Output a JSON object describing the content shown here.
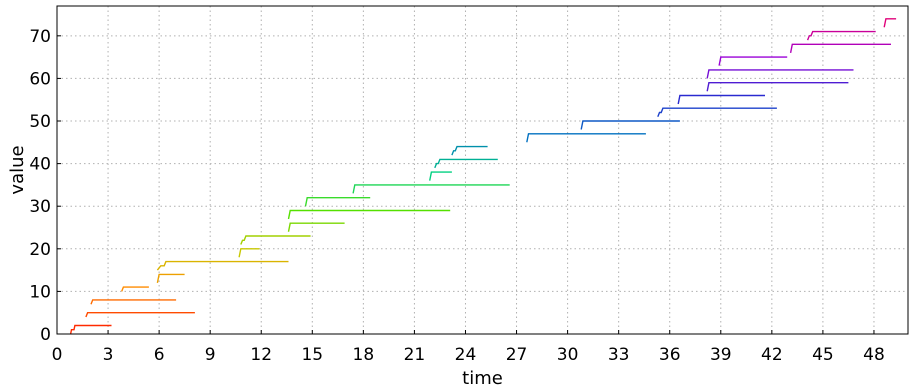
{
  "chart_data": {
    "type": "line",
    "title": "",
    "xlabel": "time",
    "ylabel": "value",
    "xlim": [
      0,
      50
    ],
    "ylim": [
      0,
      77
    ],
    "xticks": [
      0,
      3,
      6,
      9,
      12,
      15,
      18,
      21,
      24,
      27,
      30,
      33,
      36,
      39,
      42,
      45,
      48
    ],
    "yticks": [
      0,
      10,
      20,
      30,
      40,
      50,
      60,
      70
    ],
    "grid": true,
    "legend": "none",
    "color_gradient": [
      "#ff2a00",
      "#ff8c00",
      "#c8c800",
      "#55e000",
      "#00d080",
      "#0070c0",
      "#2a2ad0",
      "#9a00d8",
      "#e0007a"
    ],
    "series": [
      {
        "points": [
          [
            0.8,
            0
          ],
          [
            0.85,
            1
          ],
          [
            1.0,
            1
          ],
          [
            1.05,
            2
          ],
          [
            3.2,
            2
          ]
        ]
      },
      {
        "points": [
          [
            1.7,
            4
          ],
          [
            1.8,
            5
          ],
          [
            8.1,
            5
          ]
        ]
      },
      {
        "points": [
          [
            2.0,
            7
          ],
          [
            2.1,
            8
          ],
          [
            7.0,
            8
          ]
        ]
      },
      {
        "points": [
          [
            3.8,
            10
          ],
          [
            3.9,
            11
          ],
          [
            5.4,
            11
          ]
        ]
      },
      {
        "points": [
          [
            5.9,
            12
          ],
          [
            6.0,
            14
          ],
          [
            7.5,
            14
          ]
        ]
      },
      {
        "points": [
          [
            5.9,
            15
          ],
          [
            6.1,
            16
          ],
          [
            6.3,
            16
          ],
          [
            6.4,
            17
          ],
          [
            13.6,
            17
          ]
        ]
      },
      {
        "points": [
          [
            10.7,
            18
          ],
          [
            10.8,
            20
          ],
          [
            11.9,
            20
          ]
        ]
      },
      {
        "points": [
          [
            10.8,
            21
          ],
          [
            10.9,
            22
          ],
          [
            11.0,
            22
          ],
          [
            11.1,
            23
          ],
          [
            14.9,
            23
          ]
        ]
      },
      {
        "points": [
          [
            13.6,
            24
          ],
          [
            13.7,
            26
          ],
          [
            16.9,
            26
          ]
        ]
      },
      {
        "points": [
          [
            13.6,
            27
          ],
          [
            13.7,
            29
          ],
          [
            23.1,
            29
          ]
        ]
      },
      {
        "points": [
          [
            14.6,
            30
          ],
          [
            14.7,
            32
          ],
          [
            18.4,
            32
          ]
        ]
      },
      {
        "points": [
          [
            17.4,
            33
          ],
          [
            17.5,
            35
          ],
          [
            26.6,
            35
          ]
        ]
      },
      {
        "points": [
          [
            21.9,
            36
          ],
          [
            22.0,
            38
          ],
          [
            23.2,
            38
          ]
        ]
      },
      {
        "points": [
          [
            22.2,
            39
          ],
          [
            22.3,
            40
          ],
          [
            22.4,
            40
          ],
          [
            22.5,
            41
          ],
          [
            25.9,
            41
          ]
        ]
      },
      {
        "points": [
          [
            23.2,
            42
          ],
          [
            23.3,
            43
          ],
          [
            23.4,
            43
          ],
          [
            23.5,
            44
          ],
          [
            25.3,
            44
          ]
        ]
      },
      {
        "points": [
          [
            27.6,
            45
          ],
          [
            27.7,
            47
          ],
          [
            34.6,
            47
          ]
        ]
      },
      {
        "points": [
          [
            30.8,
            48
          ],
          [
            30.9,
            50
          ],
          [
            36.6,
            50
          ]
        ]
      },
      {
        "points": [
          [
            35.3,
            51
          ],
          [
            35.4,
            52
          ],
          [
            35.5,
            52
          ],
          [
            35.6,
            53
          ],
          [
            42.3,
            53
          ]
        ]
      },
      {
        "points": [
          [
            36.5,
            54
          ],
          [
            36.6,
            56
          ],
          [
            41.6,
            56
          ]
        ]
      },
      {
        "points": [
          [
            38.2,
            57
          ],
          [
            38.3,
            59
          ],
          [
            46.5,
            59
          ]
        ]
      },
      {
        "points": [
          [
            38.2,
            60
          ],
          [
            38.3,
            62
          ],
          [
            46.8,
            62
          ]
        ]
      },
      {
        "points": [
          [
            38.9,
            63
          ],
          [
            39.0,
            65
          ],
          [
            42.9,
            65
          ]
        ]
      },
      {
        "points": [
          [
            43.1,
            66
          ],
          [
            43.2,
            68
          ],
          [
            49.0,
            68
          ]
        ]
      },
      {
        "points": [
          [
            44.1,
            69
          ],
          [
            44.2,
            70
          ],
          [
            44.3,
            70
          ],
          [
            44.4,
            71
          ],
          [
            48.1,
            71
          ]
        ]
      },
      {
        "points": [
          [
            48.6,
            72
          ],
          [
            48.7,
            74
          ],
          [
            49.3,
            74
          ]
        ]
      }
    ]
  }
}
